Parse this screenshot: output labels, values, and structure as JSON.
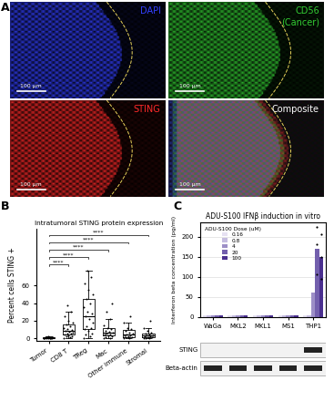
{
  "chart_data": [
    {
      "type": "image",
      "panel": "A",
      "title": "DAPI",
      "color": "#3340ff",
      "scale_bar": "100 µm"
    },
    {
      "type": "image",
      "title": "CD56\n(Cancer)",
      "color": "#33cc33",
      "scale_bar": "100 µm"
    },
    {
      "type": "image",
      "title": "STING",
      "color": "#ff2a2a",
      "scale_bar": "100 µm"
    },
    {
      "type": "image",
      "title": "Composite",
      "color": "#ffffff",
      "scale_bar": "100 µm"
    },
    {
      "type": "box",
      "panel": "B",
      "title": "Intratumoral STING protein expression",
      "y_label": "Percent cells STING +",
      "categories": [
        "Tumor",
        "CD8 T",
        "TReg",
        "Mac",
        "Other immune",
        "Stromal"
      ],
      "values": [
        [
          0,
          0,
          0,
          0.2,
          0.3,
          0.5,
          0.5,
          0.8,
          1,
          1,
          1.2,
          1.5,
          2,
          0.1,
          0.4
        ],
        [
          0,
          1,
          2,
          2,
          3,
          4,
          5,
          5,
          6,
          7,
          8,
          9,
          10,
          12,
          14,
          16,
          18,
          20,
          25,
          30,
          38
        ],
        [
          0,
          2,
          4,
          5,
          8,
          10,
          12,
          14,
          18,
          22,
          25,
          28,
          30,
          35,
          40,
          45,
          50,
          55,
          62,
          70,
          77
        ],
        [
          0,
          0.5,
          1,
          2,
          3,
          4,
          4,
          5,
          6,
          7,
          8,
          10,
          12,
          15,
          22,
          30,
          40
        ],
        [
          0,
          0.5,
          1,
          1,
          2,
          3,
          3,
          4,
          5,
          6,
          8,
          10,
          12,
          18,
          25
        ],
        [
          0,
          0.2,
          0.5,
          1,
          1,
          2,
          2,
          3,
          3,
          4,
          5,
          6,
          8,
          12,
          20
        ]
      ],
      "color": "#000000",
      "ylim": [
        -3,
        125
      ],
      "yticks": [
        0,
        20,
        40,
        60
      ],
      "comparisons": [
        {
          "from": "Tumor",
          "to": "CD8 T",
          "label": "****"
        },
        {
          "from": "Tumor",
          "to": "TReg",
          "label": "****"
        },
        {
          "from": "Tumor",
          "to": "Mac",
          "label": "****"
        },
        {
          "from": "Tumor",
          "to": "Other immune",
          "label": "****"
        },
        {
          "from": "Tumor",
          "to": "Stromal",
          "label": "****"
        }
      ]
    },
    {
      "type": "bar",
      "panel": "C",
      "title": "ADU-S100 IFNβ induction in vitro",
      "y_label": "Interferon beta concentration (pg/ml)",
      "categories": [
        "WaGa",
        "MKL2",
        "MKL1",
        "MS1",
        "THP1"
      ],
      "legend_title": "ADU-S100 Dose (uM)",
      "legend": "upper left",
      "grid": true,
      "series": [
        {
          "name": "0.16",
          "color": "#e6e1f2",
          "values": [
            4,
            4,
            4,
            4,
            4
          ],
          "replicates": [
            [],
            [],
            [],
            [],
            []
          ]
        },
        {
          "name": "0.8",
          "color": "#c5bce0",
          "values": [
            4,
            4,
            4,
            4,
            4
          ],
          "replicates": [
            [],
            [],
            [],
            [],
            []
          ]
        },
        {
          "name": "4",
          "color": "#9d8fc7",
          "values": [
            4,
            4,
            4,
            4,
            60
          ],
          "replicates": [
            [],
            [],
            [],
            [],
            []
          ]
        },
        {
          "name": "20",
          "color": "#7360ad",
          "values": [
            4,
            4,
            4,
            4,
            170
          ],
          "replicates": [
            [],
            [],
            [],
            [],
            [
              225,
              180,
              105
            ]
          ]
        },
        {
          "name": "100",
          "color": "#4a2f8f",
          "values": [
            4,
            4,
            4,
            4,
            150
          ],
          "replicates": [
            [],
            [],
            [],
            [],
            [
              205,
              150,
              95
            ]
          ]
        }
      ],
      "ylim": [
        0,
        235
      ],
      "yticks": [
        0,
        50,
        100,
        150,
        200
      ],
      "blot": {
        "rows": [
          {
            "label": "STING",
            "bands": [
              false,
              false,
              false,
              false,
              true
            ]
          },
          {
            "label": "Beta-actin",
            "bands": [
              true,
              true,
              true,
              true,
              true
            ]
          }
        ]
      }
    }
  ]
}
